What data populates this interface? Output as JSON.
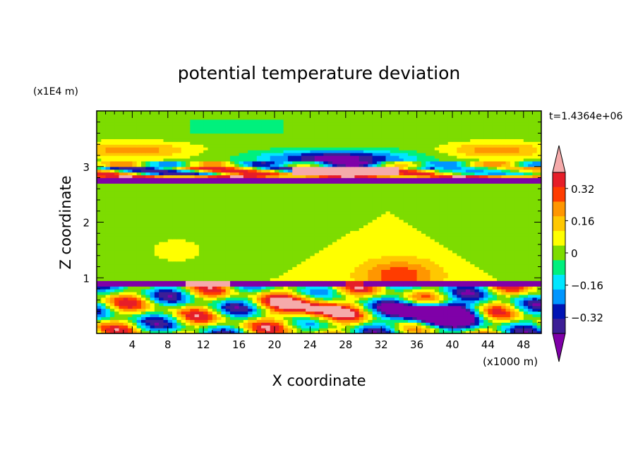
{
  "chart_data": {
    "type": "heatmap",
    "title": "potential temperature deviation",
    "xlabel": "X coordinate",
    "ylabel": "Z coordinate",
    "x_unit": "(x1000 m)",
    "y_unit": "(x1E4 m)",
    "time_label": "t=1.4364e+06",
    "xlim": [
      0,
      50
    ],
    "ylim": [
      0,
      4
    ],
    "x_ticks": [
      4,
      8,
      12,
      16,
      20,
      24,
      28,
      32,
      36,
      40,
      44,
      48
    ],
    "y_ticks": [
      1,
      2,
      3
    ],
    "colorbar": {
      "levels": [
        -0.48,
        -0.4,
        -0.32,
        -0.24,
        -0.16,
        -0.08,
        0,
        0.08,
        0.16,
        0.24,
        0.32,
        0.4,
        0.48
      ],
      "labels": [
        "0.32",
        "0.16",
        "0",
        "−0.16",
        "−0.32"
      ],
      "label_values": [
        0.32,
        0.16,
        0,
        -0.16,
        -0.32
      ],
      "colors": [
        "#7f00a8",
        "#3c1e96",
        "#0014b4",
        "#0096ff",
        "#00e6ff",
        "#00f07d",
        "#7ddc00",
        "#ffff00",
        "#ffc800",
        "#ff9600",
        "#ff3c00",
        "#e61e28",
        "#f5aaaa"
      ]
    },
    "regions": [
      {
        "name": "upper-layer-warm-left",
        "x": [
          0,
          14
        ],
        "z": [
          3.2,
          3.55
        ],
        "value": 0.2
      },
      {
        "name": "upper-layer-warm-right",
        "x": [
          40,
          50
        ],
        "z": [
          3.2,
          3.55
        ],
        "value": 0.2
      },
      {
        "name": "upper-layer-cold-center",
        "x": [
          18,
          36
        ],
        "z": [
          3.0,
          3.4
        ],
        "value": -0.4
      },
      {
        "name": "tropopause-cold-band",
        "x": [
          0,
          50
        ],
        "z": [
          2.7,
          2.8
        ],
        "value": -0.45
      },
      {
        "name": "tropopause-warm-band",
        "x": [
          4,
          38
        ],
        "z": [
          2.8,
          2.95
        ],
        "value": 0.4
      },
      {
        "name": "mid-level-neutral",
        "x": [
          0,
          50
        ],
        "z": [
          1.0,
          2.7
        ],
        "value": 0.0
      },
      {
        "name": "mid-level-slightly-warm",
        "x": [
          20,
          38
        ],
        "z": [
          1.0,
          2.7
        ],
        "value": 0.08
      },
      {
        "name": "low-level-warm-bump",
        "x": [
          30,
          40
        ],
        "z": [
          0.95,
          1.45
        ],
        "value": 0.16
      },
      {
        "name": "boundary-cold-line",
        "x": [
          0,
          50
        ],
        "z": [
          0.85,
          0.95
        ],
        "value": -0.4
      },
      {
        "name": "surface-warm-eddies",
        "x": [
          6,
          28
        ],
        "z": [
          0.05,
          0.7
        ],
        "value": 0.32
      },
      {
        "name": "surface-cold-eddy",
        "x": [
          30,
          42
        ],
        "z": [
          0.05,
          0.65
        ],
        "value": -0.48
      }
    ]
  }
}
